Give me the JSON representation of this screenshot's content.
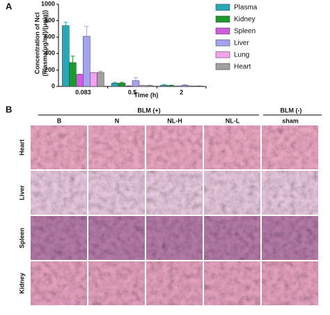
{
  "panel_a": {
    "label": "A"
  },
  "chart_data": {
    "type": "bar",
    "categories": [
      "0.083",
      "0.5",
      "2"
    ],
    "series": [
      {
        "name": "Plasma",
        "color": "#2aa7b7",
        "values": [
          740,
          40,
          15
        ],
        "errors": [
          40,
          10,
          10
        ]
      },
      {
        "name": "Kidney",
        "color": "#1c9a2c",
        "values": [
          290,
          40,
          10
        ],
        "errors": [
          80,
          10,
          5
        ]
      },
      {
        "name": "Spleen",
        "color": "#d05ce0",
        "values": [
          145,
          5,
          3
        ],
        "errors": [
          5,
          3,
          2
        ]
      },
      {
        "name": "Liver",
        "color": "#a3a3ee",
        "values": [
          610,
          70,
          15
        ],
        "errors": [
          120,
          35,
          8
        ]
      },
      {
        "name": "Lung",
        "color": "#f3a3ec",
        "values": [
          165,
          10,
          5
        ],
        "errors": [
          8,
          4,
          2
        ]
      },
      {
        "name": "Heart",
        "color": "#a0a0a0",
        "values": [
          170,
          10,
          5
        ],
        "errors": [
          15,
          4,
          2
        ]
      }
    ],
    "ylim": [
      0,
      1000
    ],
    "yticks": [
      0,
      200,
      400,
      600,
      800,
      1000
    ],
    "ylabel": [
      "Concentration of Ncl",
      "(Plasma(μg/ml)/(μg/g))"
    ],
    "xlabel": "Time (h)",
    "legend": "right"
  },
  "panel_b": {
    "label": "B",
    "groups": [
      "BLM (+)",
      "BLM (-)"
    ],
    "columns": [
      "B",
      "N",
      "NL-H",
      "NL-L",
      "sham"
    ],
    "rows": [
      "Heart",
      "Liver",
      "Spleen",
      "Kidney"
    ]
  }
}
